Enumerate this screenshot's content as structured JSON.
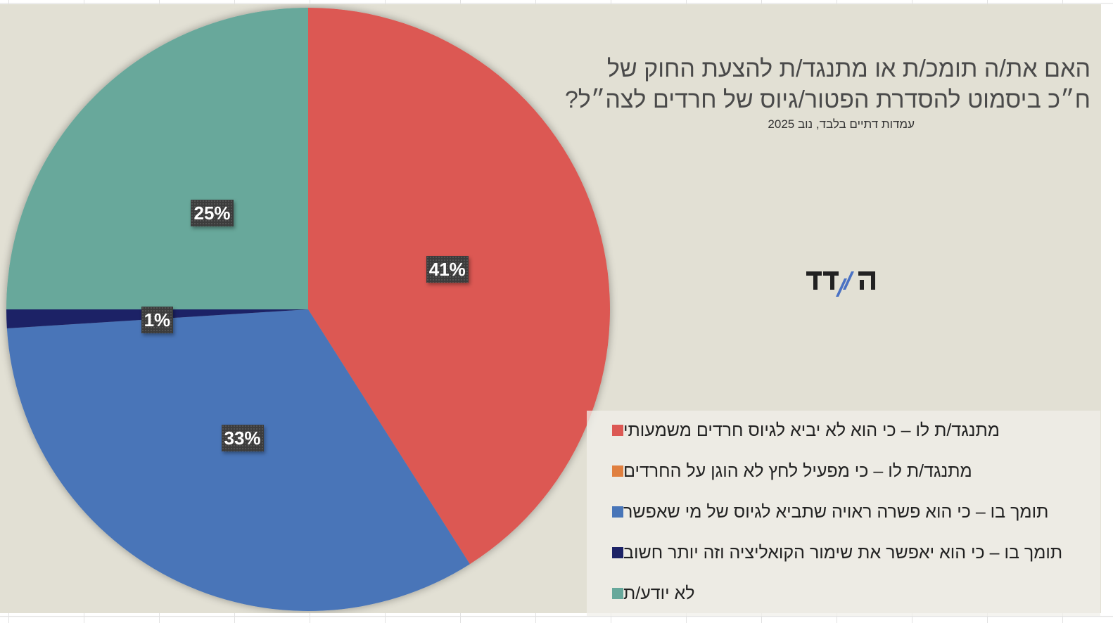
{
  "chart_data": {
    "type": "pie",
    "title": "האם את/ה תומכ/ת או מתנגד/ת להצעת החוק של ח״כ ביסמוט להסדרת הפטור/גיוס של חרדים לצה״ל?",
    "title_lines": [
      "האם את/ה תומכ/ת או מתנגד/ת להצעת החוק של",
      "ח״כ ביסמוט להסדרת הפטור/גיוס של חרדים לצה״ל?"
    ],
    "subtitle": "עמדות דתיים בלבד, נוב 2025",
    "slices": [
      {
        "label": "מתנגד/ת לו – כי הוא לא יביא לגיוס חרדים משמעותי",
        "value": 41,
        "display": "41%",
        "color": "#dc5853"
      },
      {
        "label": "מתנגד/ת לו – כי מפעיל לחץ לא הוגן על החרדים",
        "value": 0,
        "display": "",
        "color": "#e07f3f"
      },
      {
        "label": "תומך בו – כי הוא פשרה ראויה שתביא לגיוס של מי שאפשר",
        "value": 33,
        "display": "33%",
        "color": "#4875b8"
      },
      {
        "label": "תומך בו – כי הוא יאפשר את שימור הקואליציה וזה יותר חשוב",
        "value": 1,
        "display": "1%",
        "color": "#1c2266"
      },
      {
        "label": "לא יודע/ת",
        "value": 25,
        "display": "25%",
        "color": "#67a89b"
      }
    ],
    "legend_position": "bottom-right",
    "start_angle": "12 o'clock",
    "direction": "clockwise"
  },
  "logo": {
    "name": "hamadad-logo",
    "text": "המדד",
    "accent_color": "#4a72c4"
  }
}
